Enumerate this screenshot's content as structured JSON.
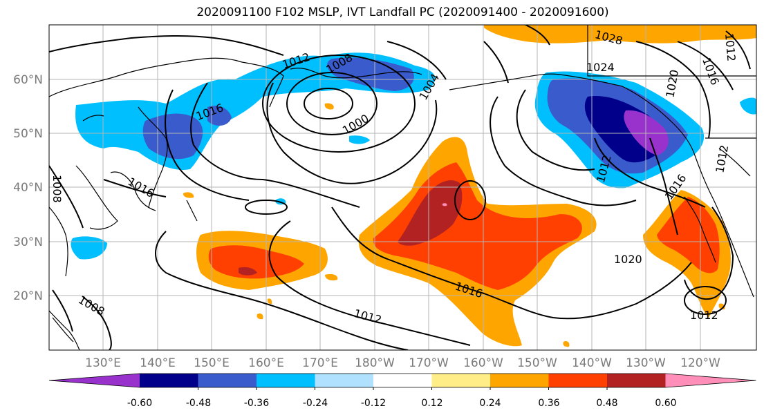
{
  "title": "2020091100 F102 MSLP, IVT Landfall PC (2020091400 - 2020091600)",
  "lat_labels": [
    "60°N",
    "50°N",
    "40°N",
    "30°N",
    "20°N"
  ],
  "lon_labels": [
    "130°E",
    "140°E",
    "150°E",
    "160°E",
    "170°E",
    "180°W",
    "170°W",
    "160°W",
    "150°W",
    "140°W",
    "130°W",
    "120°W"
  ],
  "colorbar": {
    "colors": [
      "#9932cc",
      "#00008b",
      "#3a5bcc",
      "#00bfff",
      "#b0e2ff",
      "#ffffff",
      "#ffee88",
      "#ffa500",
      "#ff4000",
      "#b22222",
      "#ff8fb8"
    ],
    "tick_labels": [
      "-0.60",
      "-0.48",
      "-0.36",
      "-0.24",
      "-0.12",
      "0.12",
      "0.24",
      "0.36",
      "0.48",
      "0.60"
    ]
  },
  "contour_labels": [
    "1012",
    "1008",
    "1004",
    "1000",
    "1016",
    "1024",
    "1028",
    "1020",
    "1016",
    "1012",
    "1008",
    "1016",
    "1012",
    "1020",
    "1012",
    "1016",
    "1012",
    "1012",
    "1008",
    "1016"
  ]
}
